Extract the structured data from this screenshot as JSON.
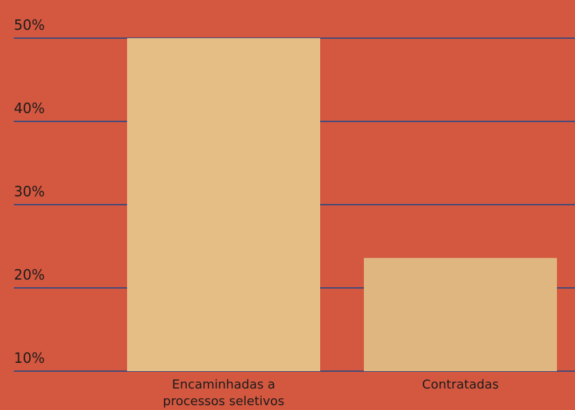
{
  "chart_data": {
    "type": "bar",
    "categories": [
      "Encaminhadas a processos seletivos",
      "Contratadas"
    ],
    "values": [
      50,
      23.6
    ],
    "colors": [
      "#e5be86",
      "#dfb680"
    ],
    "ylim": [
      10,
      50
    ],
    "yticks": [
      {
        "value": 10,
        "label": "10%"
      },
      {
        "value": 20,
        "label": "20%"
      },
      {
        "value": 30,
        "label": "30%"
      },
      {
        "value": 40,
        "label": "40%"
      },
      {
        "value": 50,
        "label": "50%"
      }
    ],
    "grid": true,
    "grid_color": "#3f4a7c"
  }
}
